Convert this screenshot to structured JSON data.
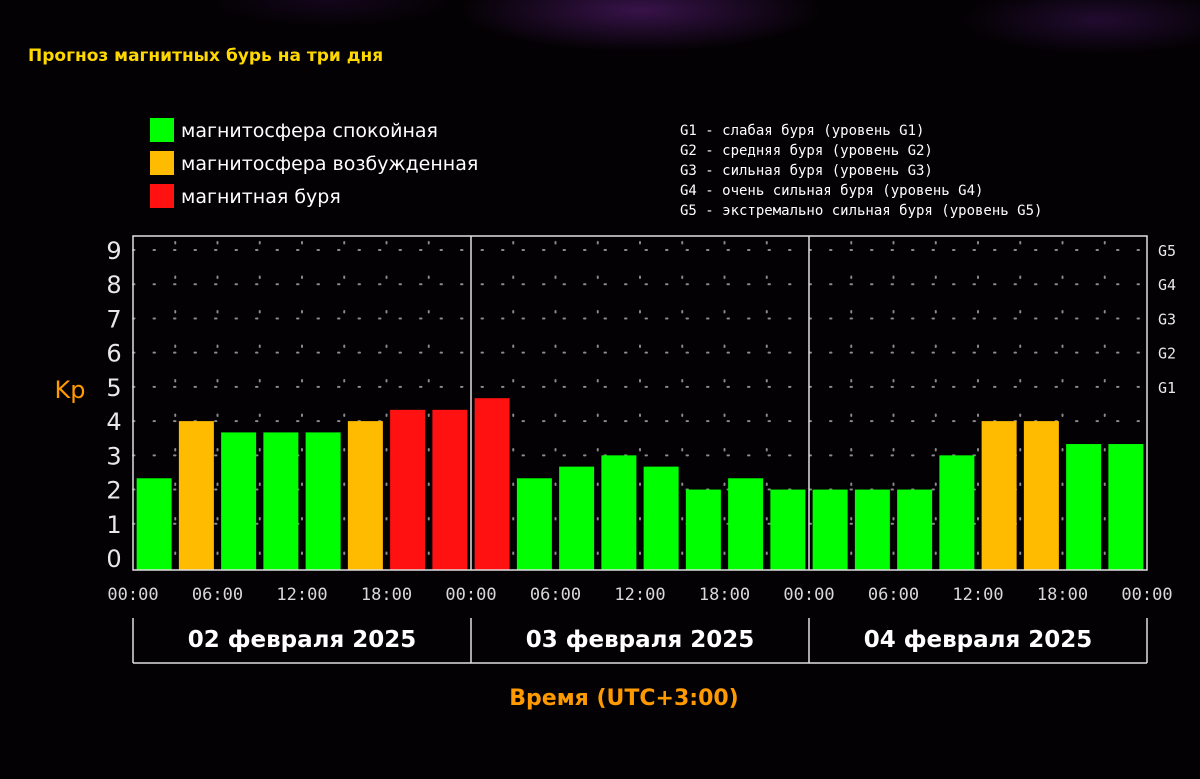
{
  "title": "Прогноз магнитных бурь на три дня",
  "colors": {
    "quiet": "#00ff00",
    "excited": "#ffbb00",
    "storm": "#ff1111",
    "title": "#ffd800",
    "axis_label": "#ff9900"
  },
  "legend": [
    {
      "label": "магнитосфера спокойная",
      "color": "#00ff00"
    },
    {
      "label": "магнитосфера возбужденная",
      "color": "#ffbb00"
    },
    {
      "label": "магнитная буря",
      "color": "#ff1111"
    }
  ],
  "g_levels": [
    "G1 - слабая буря (уровень G1)",
    "G2 - средняя буря (уровень G2)",
    "G3 - сильная буря (уровень G3)",
    "G4 - очень сильная буря (уровень G4)",
    "G5 - экстремально сильная буря (уровень G5)"
  ],
  "chart_data": {
    "type": "bar",
    "title": "Прогноз магнитных бурь на три дня",
    "ylabel": "Kp",
    "xlabel": "Время (UTC+3:00)",
    "ylim": [
      0,
      9
    ],
    "yticks": [
      0,
      1,
      2,
      3,
      4,
      5,
      6,
      7,
      8,
      9
    ],
    "right_ticks": [
      {
        "value": 5,
        "label": "G1"
      },
      {
        "value": 6,
        "label": "G2"
      },
      {
        "value": 7,
        "label": "G3"
      },
      {
        "value": 8,
        "label": "G4"
      },
      {
        "value": 9,
        "label": "G5"
      }
    ],
    "xtick_labels": [
      "00:00",
      "06:00",
      "12:00",
      "18:00",
      "00:00",
      "06:00",
      "12:00",
      "18:00",
      "00:00",
      "06:00",
      "12:00",
      "18:00",
      "00:00"
    ],
    "days": [
      "02 февраля 2025",
      "03 февраля 2025",
      "04 февраля 2025"
    ],
    "grid": true,
    "values": [
      2.33,
      4.0,
      3.67,
      3.67,
      3.67,
      4.0,
      4.33,
      4.33,
      4.67,
      2.33,
      2.67,
      3.0,
      2.67,
      2.0,
      2.33,
      2.0,
      2.0,
      2.0,
      2.0,
      3.0,
      4.0,
      4.0,
      3.33,
      3.33
    ],
    "levels": [
      "quiet",
      "excited",
      "quiet",
      "quiet",
      "quiet",
      "excited",
      "storm",
      "storm",
      "storm",
      "quiet",
      "quiet",
      "quiet",
      "quiet",
      "quiet",
      "quiet",
      "quiet",
      "quiet",
      "quiet",
      "quiet",
      "quiet",
      "excited",
      "excited",
      "quiet",
      "quiet"
    ]
  }
}
